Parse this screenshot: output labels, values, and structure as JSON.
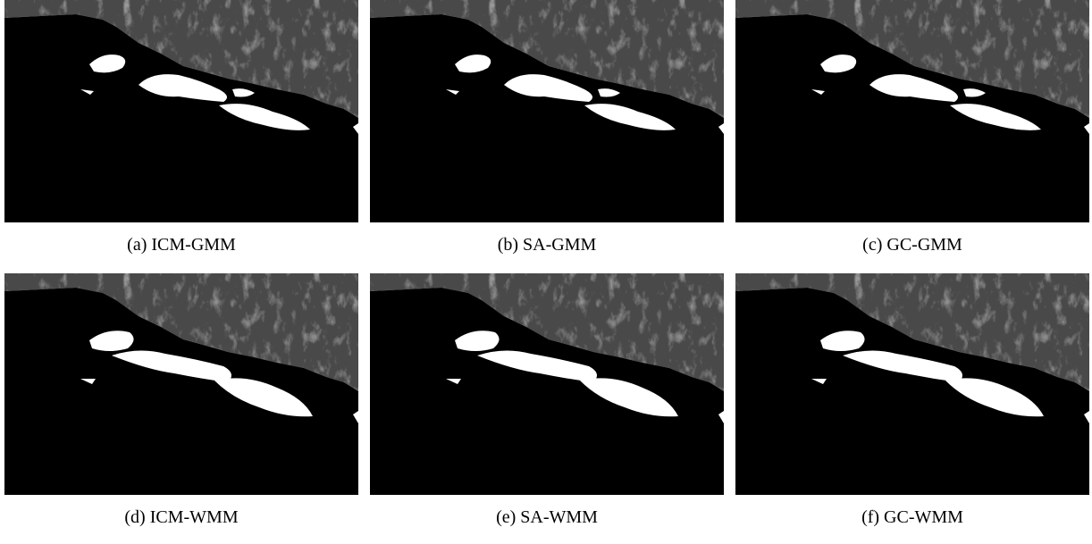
{
  "figure": {
    "panels": [
      {
        "caption": "(a) ICM-GMM"
      },
      {
        "caption": "(b) SA-GMM"
      },
      {
        "caption": "(c) GC-GMM"
      },
      {
        "caption": "(d) ICM-WMM"
      },
      {
        "caption": "(e) SA-WMM"
      },
      {
        "caption": "(f) GC-WMM"
      }
    ]
  }
}
